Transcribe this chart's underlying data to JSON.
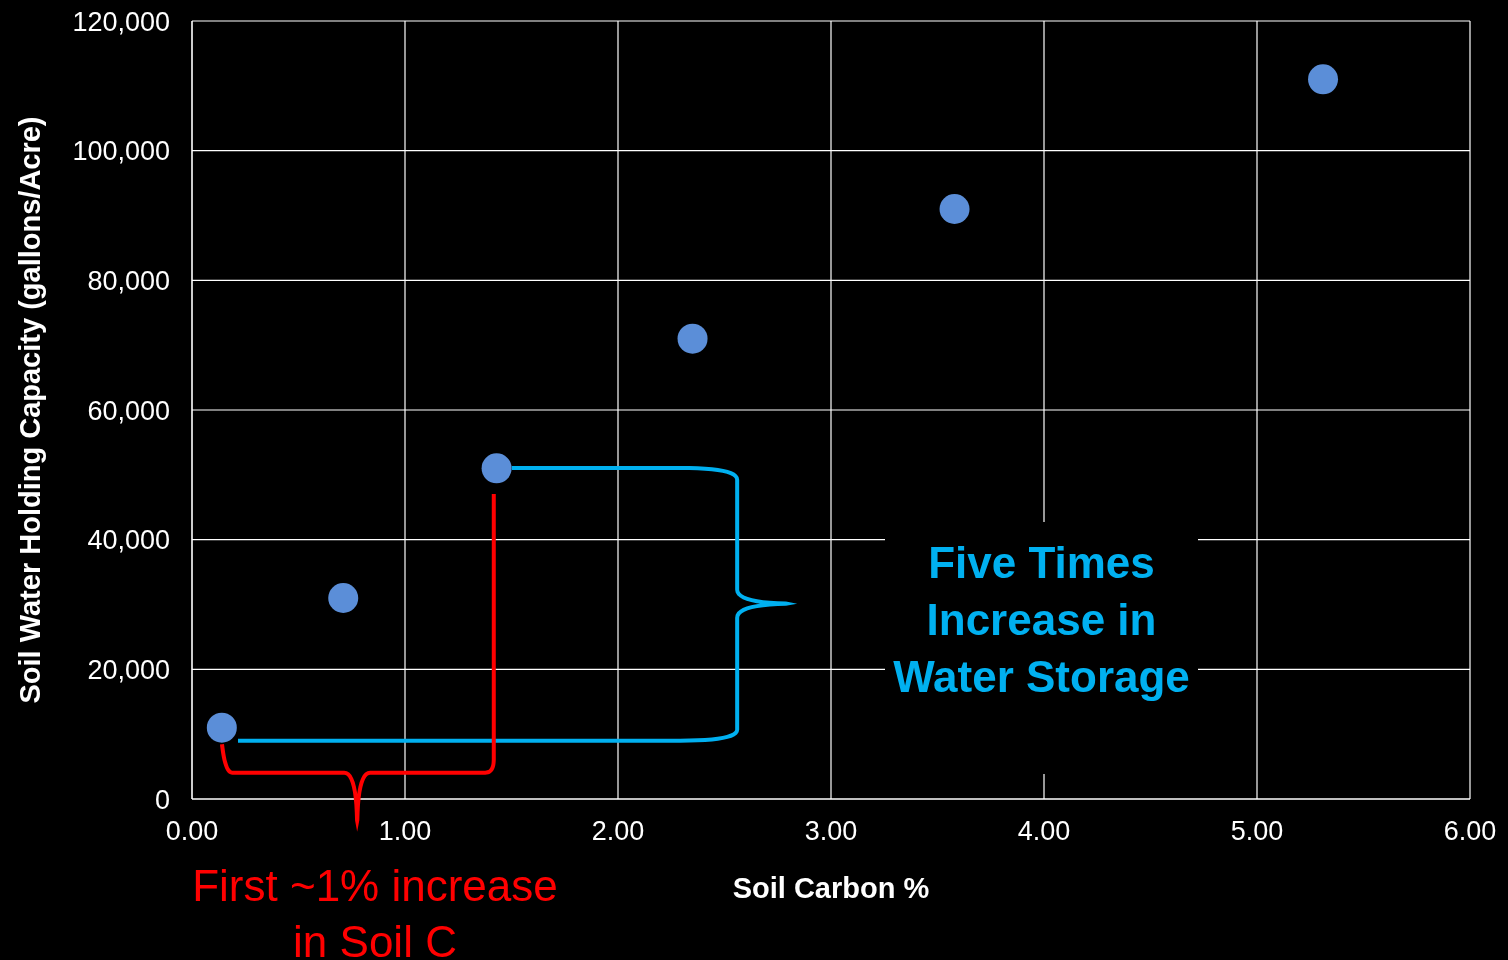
{
  "chart_data": {
    "type": "scatter",
    "xlabel": "Soil Carbon %",
    "ylabel": "Soil Water Holding Capacity (gallons/Acre)",
    "x": [
      0.14,
      0.71,
      1.43,
      2.35,
      3.58,
      5.31
    ],
    "values": [
      11000,
      31000,
      51000,
      71000,
      91000,
      111000
    ],
    "color": "#5b8ed8",
    "xlim": [
      0,
      6
    ],
    "xticks": [
      {
        "value": 0,
        "label": "0.00"
      },
      {
        "value": 1,
        "label": "1.00"
      },
      {
        "value": 2,
        "label": "2.00"
      },
      {
        "value": 3,
        "label": "3.00"
      },
      {
        "value": 4,
        "label": "4.00"
      },
      {
        "value": 5,
        "label": "5.00"
      },
      {
        "value": 6,
        "label": "6.00"
      }
    ],
    "ylim": [
      0,
      120000
    ],
    "yticks": [
      {
        "value": 0,
        "label": "0"
      },
      {
        "value": 20000,
        "label": "20,000"
      },
      {
        "value": 40000,
        "label": "40,000"
      },
      {
        "value": 60000,
        "label": "60,000"
      },
      {
        "value": 80000,
        "label": "80,000"
      },
      {
        "value": 100000,
        "label": "100,000"
      },
      {
        "value": 120000,
        "label": "120,000"
      }
    ],
    "grid": true,
    "marker": "circle",
    "annotations": [
      "Five Times Increase in Water Storage",
      "First ~1% increase in Soil C"
    ]
  }
}
